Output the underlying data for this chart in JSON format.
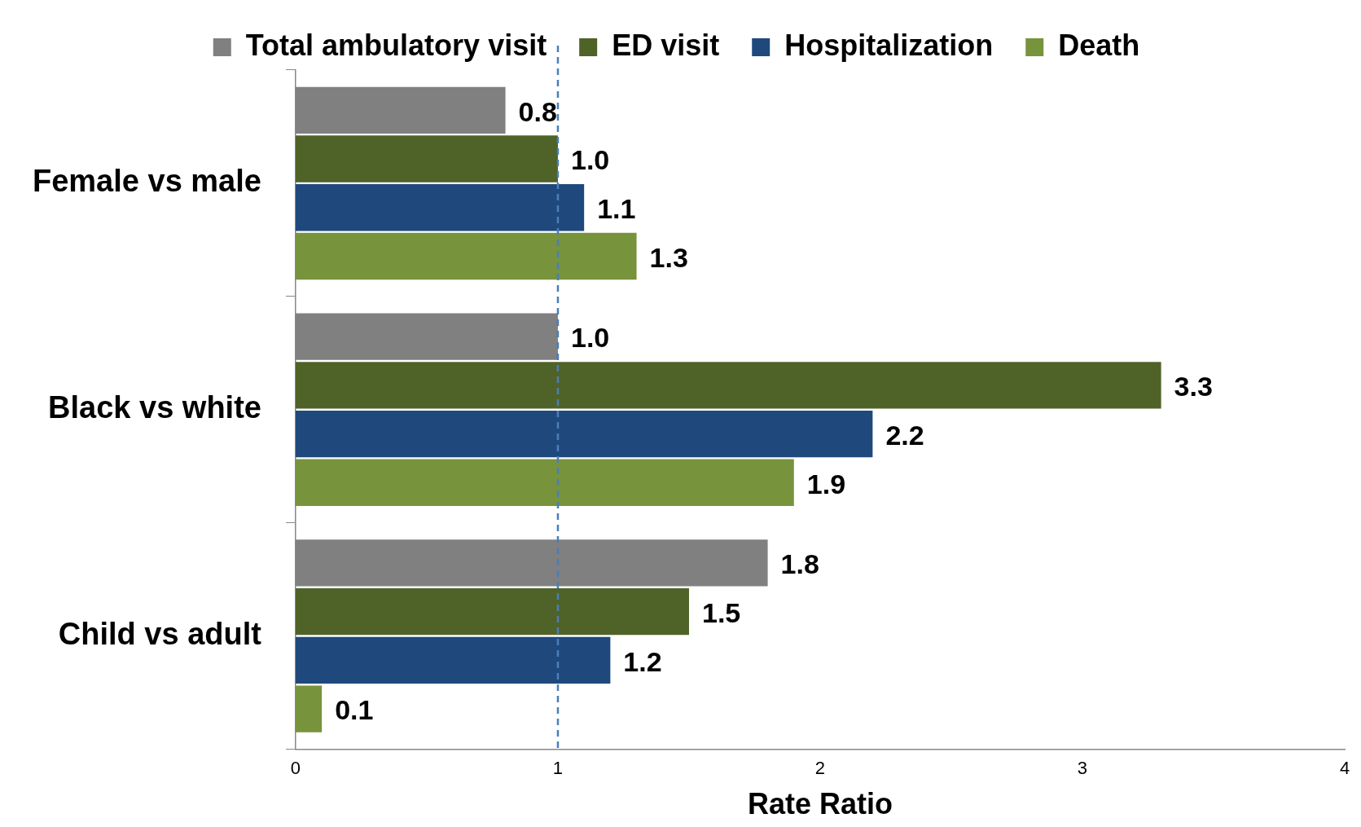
{
  "chart_data": {
    "type": "bar",
    "orientation": "horizontal",
    "xlabel": "Rate Ratio",
    "categories": [
      "Female vs male",
      "Black vs white",
      "Child vs adult"
    ],
    "series": [
      {
        "name": "Total ambulatory visit",
        "color": "#808080",
        "values": [
          0.8,
          1.0,
          1.8
        ],
        "value_labels": [
          "0.8",
          "1.0",
          "1.8"
        ]
      },
      {
        "name": "ED visit",
        "color": "#4f6228",
        "values": [
          1.0,
          3.3,
          1.5
        ],
        "value_labels": [
          "1.0",
          "3.3",
          "1.5"
        ]
      },
      {
        "name": "Hospitalization",
        "color": "#1f497d",
        "values": [
          1.1,
          2.2,
          1.2
        ],
        "value_labels": [
          "1.1",
          "2.2",
          "1.2"
        ]
      },
      {
        "name": "Death",
        "color": "#77933c",
        "values": [
          1.3,
          1.9,
          0.1
        ],
        "value_labels": [
          "1.3",
          "1.9",
          "0.1"
        ]
      }
    ],
    "xlim": [
      0,
      4
    ],
    "xticks": [
      0,
      1,
      2,
      3,
      4
    ],
    "legend": "top",
    "grid": false,
    "ref_lines": [
      {
        "axis": "x",
        "value": 1,
        "color": "#4a7ebb",
        "line_style": "dashed"
      }
    ]
  }
}
